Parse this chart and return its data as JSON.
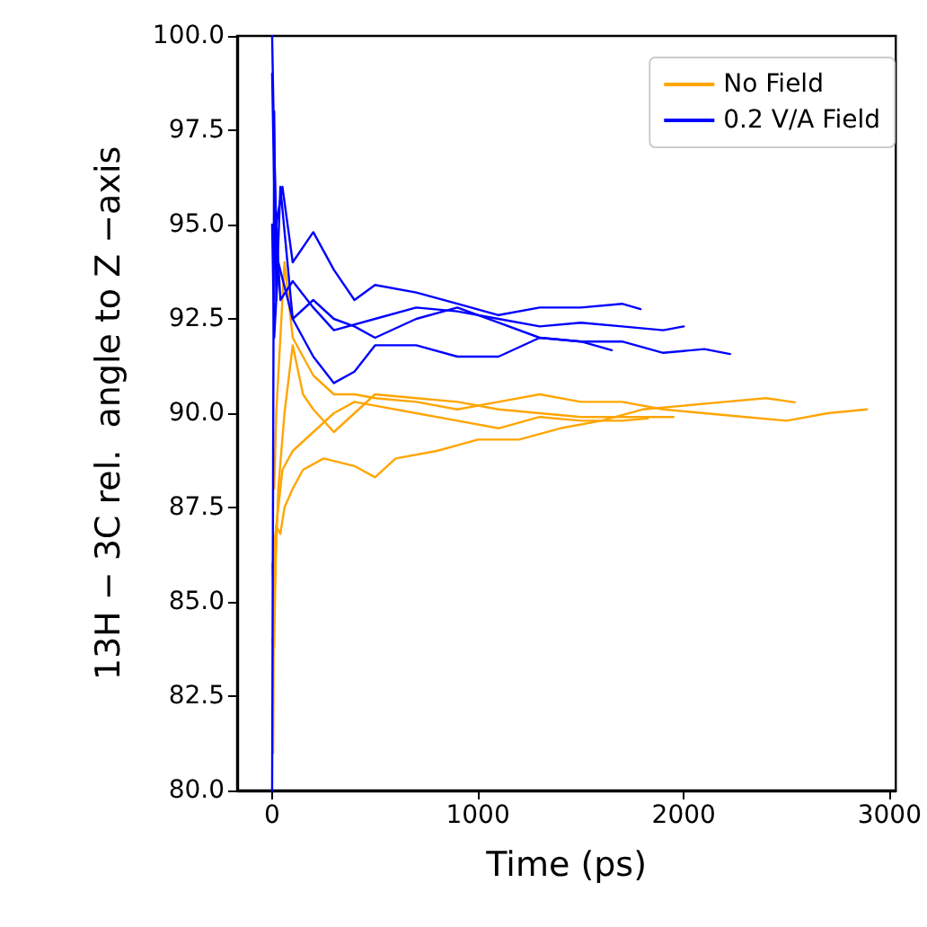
{
  "chart_data": {
    "type": "line",
    "xlabel": "Time (ps)",
    "ylabel": "13H − 3C rel.  angle to Z −axis",
    "legend": "top right",
    "grid": false,
    "marker": "none",
    "line_style": "solid",
    "xlim": [
      -170,
      3030
    ],
    "xticks": [
      0,
      1000,
      2000,
      3000
    ],
    "ylim": [
      80,
      100
    ],
    "yticks": [
      {
        "value": 80,
        "label": "80.0"
      },
      {
        "value": 82.5,
        "label": "82.5"
      },
      {
        "value": 85,
        "label": "85.0"
      },
      {
        "value": 87.5,
        "label": "87.5"
      },
      {
        "value": 90,
        "label": "90.0"
      },
      {
        "value": 92.5,
        "label": "92.5"
      },
      {
        "value": 95,
        "label": "95.0"
      },
      {
        "value": 97.5,
        "label": "97.5"
      },
      {
        "value": 100,
        "label": "100.0"
      }
    ],
    "series": [
      {
        "name": "No Field",
        "color": "#ffa500",
        "x": [
          5,
          10,
          20,
          40,
          60,
          100,
          150,
          250,
          400,
          500,
          600,
          800,
          1000,
          1200,
          1400,
          1600,
          1800,
          2000,
          2200,
          2400,
          2540
        ],
        "values": [
          81,
          86.5,
          87,
          86.8,
          87.5,
          88,
          88.5,
          88.8,
          88.6,
          88.3,
          88.8,
          89,
          89.3,
          89.3,
          89.6,
          89.8,
          90.1,
          90.2,
          90.3,
          90.4,
          90.29
        ]
      },
      {
        "color": "#ffa500",
        "x": [
          10,
          20,
          40,
          60,
          100,
          150,
          200,
          300,
          400,
          500,
          700,
          900,
          1100,
          1300,
          1500,
          1700,
          1900,
          2100,
          2300,
          2500,
          2700,
          2890
        ],
        "values": [
          88,
          90,
          92,
          94,
          92,
          91.5,
          91,
          90.5,
          90.5,
          90.4,
          90.3,
          90.1,
          90.3,
          90.5,
          90.3,
          90.3,
          90.1,
          90,
          89.9,
          89.8,
          90,
          90.1
        ]
      },
      {
        "color": "#ffa500",
        "x": [
          0,
          10,
          20,
          50,
          100,
          200,
          300,
          400,
          500,
          700,
          900,
          1100,
          1300,
          1500,
          1700,
          1825
        ],
        "values": [
          84,
          83.8,
          87,
          88.5,
          89,
          89.5,
          90,
          90.3,
          90.2,
          90,
          89.8,
          89.6,
          89.9,
          89.8,
          89.8,
          89.86
        ]
      },
      {
        "color": "#ffa500",
        "x": [
          0,
          10,
          30,
          60,
          100,
          150,
          200,
          300,
          400,
          500,
          700,
          900,
          1100,
          1300,
          1500,
          1700,
          1950
        ],
        "values": [
          86,
          85,
          88,
          90,
          91.8,
          90.5,
          90.1,
          89.5,
          90,
          90.5,
          90.4,
          90.3,
          90.1,
          90,
          89.9,
          89.9,
          89.9
        ]
      },
      {
        "name": "0.2 V/A Field",
        "color": "#0000ff",
        "x": [
          0,
          10,
          20,
          50,
          100,
          200,
          300,
          400,
          500,
          700,
          900,
          1100,
          1300,
          1500,
          1700,
          1790
        ],
        "values": [
          100,
          97,
          95,
          96,
          94,
          94.8,
          93.8,
          93,
          93.4,
          93.2,
          92.9,
          92.6,
          92.8,
          92.8,
          92.9,
          92.76
        ]
      },
      {
        "color": "#0000ff",
        "x": [
          0,
          10,
          20,
          40,
          100,
          200,
          300,
          400,
          500,
          700,
          900,
          1100,
          1300,
          1500,
          1650
        ],
        "values": [
          80,
          98,
          93,
          96,
          92.5,
          93,
          92.5,
          92.3,
          92,
          92.5,
          92.8,
          92.4,
          92,
          91.9,
          91.67
        ]
      },
      {
        "color": "#0000ff",
        "x": [
          0,
          10,
          30,
          100,
          200,
          300,
          400,
          500,
          700,
          900,
          1100,
          1300,
          1500,
          1700,
          1900,
          2100,
          2225
        ],
        "values": [
          95,
          92,
          94,
          92.5,
          91.5,
          90.8,
          91.1,
          91.8,
          91.8,
          91.5,
          91.5,
          92,
          91.9,
          91.9,
          91.6,
          91.7,
          91.57
        ]
      },
      {
        "color": "#0000ff",
        "x": [
          0,
          10,
          40,
          100,
          200,
          300,
          500,
          700,
          900,
          1100,
          1300,
          1500,
          1700,
          1900,
          2000
        ],
        "values": [
          99,
          96,
          93,
          93.5,
          92.8,
          92.2,
          92.5,
          92.8,
          92.7,
          92.5,
          92.3,
          92.4,
          92.3,
          92.2,
          92.3
        ]
      }
    ]
  }
}
